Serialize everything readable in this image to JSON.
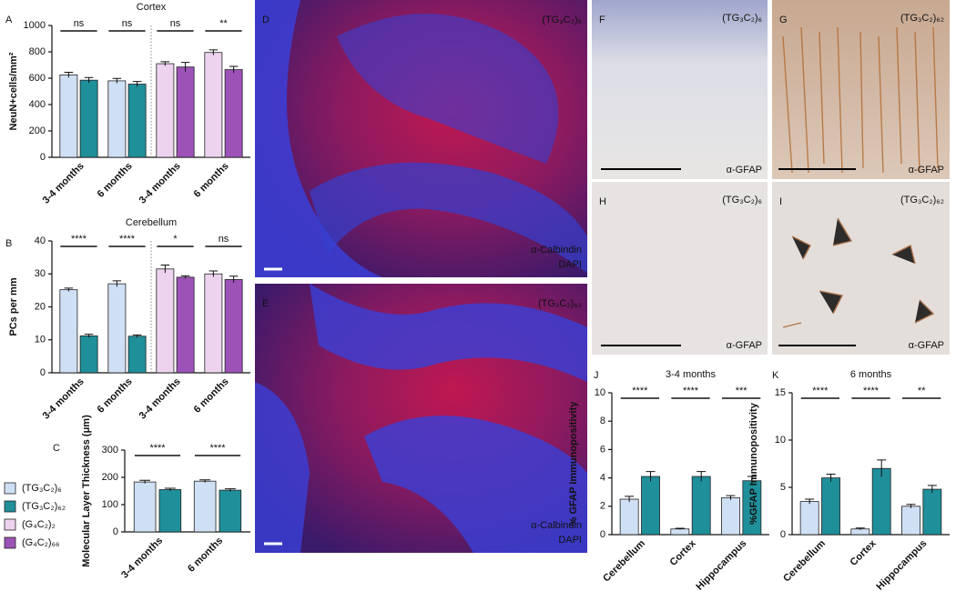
{
  "chart_data": [
    {
      "panel": "A",
      "type": "bar",
      "title": "Cortex",
      "ylabel": "NeuN+cells/mm²",
      "categories": [
        "3-4 months",
        "6 months",
        "3-4 months",
        "6 months"
      ],
      "series": [
        {
          "name": "(TG₃C₂)₆",
          "color": "#cfe0f5",
          "values": [
            625,
            580,
            null,
            null
          ],
          "errors": [
            20,
            18,
            null,
            null
          ]
        },
        {
          "name": "(TG₃C₂)₆₂",
          "color": "#1f8f9a",
          "values": [
            585,
            555,
            null,
            null
          ],
          "errors": [
            20,
            20,
            null,
            null
          ]
        },
        {
          "name": "(G₄C₂)₂",
          "color": "#edd3ee",
          "values": [
            null,
            null,
            710,
            795
          ],
          "errors": [
            null,
            null,
            15,
            20
          ]
        },
        {
          "name": "(G₄C₂)₆₆",
          "color": "#9d52b8",
          "values": [
            null,
            null,
            685,
            665
          ],
          "errors": [
            null,
            null,
            35,
            25
          ]
        }
      ],
      "annotations": [
        "ns",
        "ns",
        "ns",
        "**"
      ],
      "ylim": [
        0,
        1000
      ],
      "yticks": [
        0,
        200,
        400,
        600,
        800,
        1000
      ]
    },
    {
      "panel": "B",
      "type": "bar",
      "title": "Cerebellum",
      "ylabel": "PCs per mm",
      "categories": [
        "3-4 months",
        "6 months",
        "3-4 months",
        "6 months"
      ],
      "series": [
        {
          "color": "#cfe0f5",
          "values": [
            25.2,
            27,
            null,
            null
          ],
          "errors": [
            0.5,
            0.9,
            null,
            null
          ]
        },
        {
          "color": "#1f8f9a",
          "values": [
            11.2,
            11.1,
            null,
            null
          ],
          "errors": [
            0.5,
            0.4,
            null,
            null
          ]
        },
        {
          "color": "#edd3ee",
          "values": [
            null,
            null,
            31.5,
            30
          ],
          "errors": [
            null,
            null,
            1.2,
            0.9
          ]
        },
        {
          "color": "#9d52b8",
          "values": [
            null,
            null,
            29,
            28.3
          ],
          "errors": [
            null,
            null,
            0.4,
            1
          ]
        }
      ],
      "annotations": [
        "****",
        "****",
        "*",
        "ns"
      ],
      "ylim": [
        0,
        40
      ],
      "yticks": [
        0,
        10,
        20,
        30,
        40
      ]
    },
    {
      "panel": "C",
      "type": "bar",
      "ylabel": "Molecular Layer Thickness (μm)",
      "categories": [
        "3-4 months",
        "6 months"
      ],
      "series": [
        {
          "color": "#cfe0f5",
          "values": [
            183,
            186
          ],
          "errors": [
            6,
            5
          ]
        },
        {
          "color": "#1f8f9a",
          "values": [
            155,
            153
          ],
          "errors": [
            5,
            5
          ]
        }
      ],
      "annotations": [
        "****",
        "****"
      ],
      "ylim": [
        0,
        300
      ],
      "yticks": [
        0,
        100,
        200,
        300
      ]
    },
    {
      "panel": "J",
      "type": "bar",
      "title": "3-4 months",
      "ylabel": "% GFAP Immunopositivity",
      "categories": [
        "Cerebellum",
        "Cortex",
        "Hippocampus"
      ],
      "series": [
        {
          "color": "#cfe0f5",
          "values": [
            2.5,
            0.4,
            2.6
          ],
          "errors": [
            0.2,
            0.05,
            0.15
          ]
        },
        {
          "color": "#1f8f9a",
          "values": [
            4.1,
            4.1,
            3.8
          ],
          "errors": [
            0.35,
            0.35,
            0.3
          ]
        }
      ],
      "annotations": [
        "****",
        "****",
        "***"
      ],
      "ylim": [
        0,
        10
      ],
      "yticks": [
        0,
        2,
        4,
        6,
        8,
        10
      ]
    },
    {
      "panel": "K",
      "type": "bar",
      "title": "6 months",
      "ylabel": "%GFAP Immunopositivity",
      "categories": [
        "Cerebellum",
        "Cortex",
        "Hippocampus"
      ],
      "series": [
        {
          "color": "#cfe0f5",
          "values": [
            3.5,
            0.6,
            3.0
          ],
          "errors": [
            0.25,
            0.1,
            0.2
          ]
        },
        {
          "color": "#1f8f9a",
          "values": [
            6.0,
            7.0,
            4.8
          ],
          "errors": [
            0.4,
            0.9,
            0.4
          ]
        }
      ],
      "annotations": [
        "****",
        "****",
        "**"
      ],
      "ylim": [
        0,
        15
      ],
      "yticks": [
        0,
        5,
        10,
        15
      ]
    }
  ],
  "images": [
    {
      "panel": "D",
      "label": "(TG₃C₂)₆",
      "stain": "α-Calbindin",
      "counterstain": "DAPI"
    },
    {
      "panel": "E",
      "label": "(TG₃C₂)₆₂",
      "stain": "α-Calbindin",
      "counterstain": "DAPI"
    },
    {
      "panel": "F",
      "label": "(TG₃C₂)₆",
      "stain": "α-GFAP"
    },
    {
      "panel": "G",
      "label": "(TG₃C₂)₆₂",
      "stain": "α-GFAP"
    },
    {
      "panel": "H",
      "label": "(TG₃C₂)₆",
      "stain": "α-GFAP"
    },
    {
      "panel": "I",
      "label": "(TG₃C₂)₆₂",
      "stain": "α-GFAP"
    }
  ]
}
